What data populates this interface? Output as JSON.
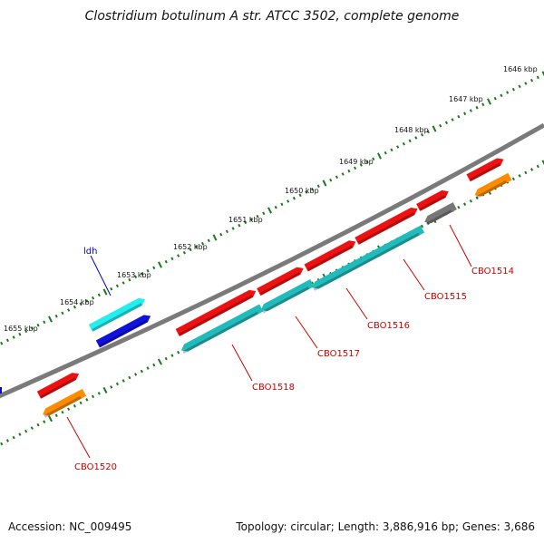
{
  "title": "Clostridium botulinum A str. ATCC 3502, complete genome",
  "footer": {
    "accession": "Accession: NC_009495",
    "summary": "Topology: circular; Length: 3,886,916 bp; Genes: 3,686"
  },
  "colors": {
    "backbone": "#7a7a7a",
    "tick": "#1a7a1a",
    "label_red": "#cc0000",
    "label_blue": "#0000cc",
    "cds_forward": "#ee1111",
    "cds_reverse": "#22bbbb",
    "ldh": "#22eeee",
    "ldh_dark": "#1111dd",
    "orange": "#ff8c00",
    "gray": "#777777"
  },
  "ticks": [
    {
      "label": "1646 kbp"
    },
    {
      "label": "1647 kbp"
    },
    {
      "label": "1648 kbp"
    },
    {
      "label": "1649 kbp"
    },
    {
      "label": "1650 kbp"
    },
    {
      "label": "1651 kbp"
    },
    {
      "label": "1652 kbp"
    },
    {
      "label": "1653 kbp"
    },
    {
      "label": "1654 kbp"
    },
    {
      "label": "1655 kbp"
    }
  ],
  "genes": [
    {
      "label": "CBO1514",
      "color_key": "label_red"
    },
    {
      "label": "CBO1515",
      "color_key": "label_red"
    },
    {
      "label": "CBO1516",
      "color_key": "label_red"
    },
    {
      "label": "CBO1517",
      "color_key": "label_red"
    },
    {
      "label": "CBO1518",
      "color_key": "label_red"
    },
    {
      "label": "CBO1520",
      "color_key": "label_red"
    },
    {
      "label": "ldh",
      "color_key": "label_blue"
    }
  ]
}
